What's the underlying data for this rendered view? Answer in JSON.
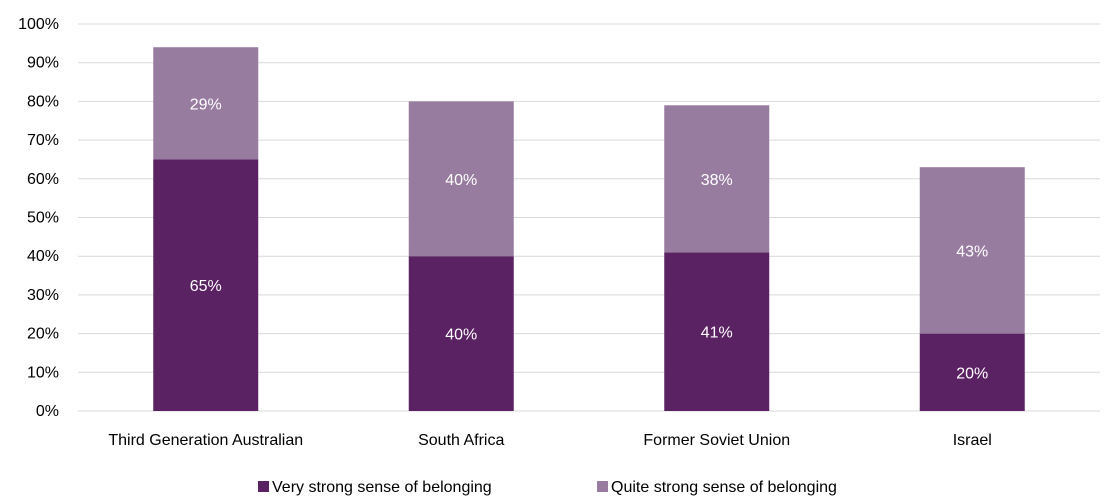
{
  "chart_data": {
    "type": "bar",
    "stacked": true,
    "categories": [
      "Third Generation Australian",
      "South Africa",
      "Former Soviet Union",
      "Israel"
    ],
    "series": [
      {
        "name": "Very strong sense of belonging",
        "values": [
          65,
          40,
          41,
          20
        ],
        "labels": [
          "65%",
          "40%",
          "41%",
          "20%"
        ],
        "color": "#5b2263"
      },
      {
        "name": "Quite strong sense of belonging",
        "values": [
          29,
          40,
          38,
          43
        ],
        "labels": [
          "29%",
          "40%",
          "38%",
          "43%"
        ],
        "color": "#987ca0"
      }
    ],
    "y_ticks": [
      "0%",
      "10%",
      "20%",
      "30%",
      "40%",
      "50%",
      "60%",
      "70%",
      "80%",
      "90%",
      "100%"
    ],
    "ylim": [
      0,
      100
    ],
    "grid": true,
    "grid_color": "#d9d9d9",
    "legend_position": "bottom"
  }
}
